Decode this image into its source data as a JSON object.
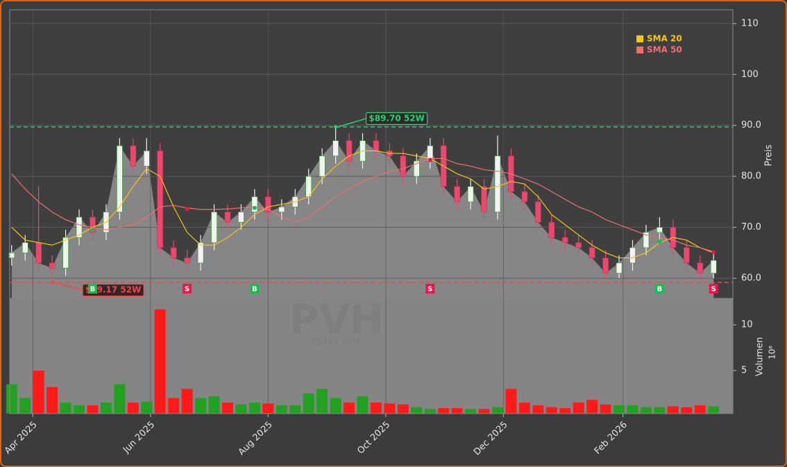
{
  "chart_data": {
    "type": "candlestick",
    "watermark": "PVH",
    "watermark_subtitle": "PVH Corp",
    "x": [
      "2025-03-21",
      "2025-03-28",
      "2025-04-04",
      "2025-04-11",
      "2025-04-18",
      "2025-04-25",
      "2025-05-02",
      "2025-05-09",
      "2025-05-16",
      "2025-05-23",
      "2025-05-30",
      "2025-06-06",
      "2025-06-13",
      "2025-06-20",
      "2025-06-27",
      "2025-07-04",
      "2025-07-11",
      "2025-07-18",
      "2025-07-25",
      "2025-08-01",
      "2025-08-08",
      "2025-08-15",
      "2025-08-22",
      "2025-08-29",
      "2025-09-05",
      "2025-09-12",
      "2025-09-19",
      "2025-09-26",
      "2025-10-03",
      "2025-10-10",
      "2025-10-17",
      "2025-10-24",
      "2025-10-31",
      "2025-11-07",
      "2025-11-14",
      "2025-11-21",
      "2025-11-28",
      "2025-12-05",
      "2025-12-12",
      "2025-12-19",
      "2025-12-26",
      "2026-01-02",
      "2026-01-09",
      "2026-01-16",
      "2026-01-23",
      "2026-01-30",
      "2026-02-06",
      "2026-02-13",
      "2026-02-20",
      "2026-02-27",
      "2026-03-06",
      "2026-03-13",
      "2026-03-20"
    ],
    "open": [
      64,
      65,
      67,
      63,
      62,
      68,
      72,
      69,
      73,
      86,
      82,
      85,
      66,
      64,
      63,
      67,
      73,
      71,
      73,
      76,
      73,
      74,
      76,
      80,
      84,
      87,
      83,
      87,
      85,
      84,
      80,
      83,
      86,
      78,
      75,
      78,
      73,
      84,
      77,
      75,
      71,
      68,
      67,
      66,
      64,
      61,
      63,
      66,
      69,
      70,
      66,
      63,
      61
    ],
    "high": [
      66.5,
      68.5,
      78,
      64.5,
      69.5,
      73.5,
      73.5,
      74.5,
      87.5,
      87.5,
      87.5,
      86.5,
      67.5,
      65.5,
      68.5,
      74.5,
      74.5,
      74.5,
      77.5,
      77.5,
      75.5,
      77.5,
      81.5,
      85.5,
      89.7,
      88.5,
      88.5,
      88.5,
      86.5,
      85.5,
      84.5,
      87.5,
      87.5,
      79.5,
      79.5,
      79.5,
      88,
      85.5,
      78.5,
      76.5,
      72.5,
      69.5,
      68.5,
      67.5,
      65.5,
      64.5,
      67.5,
      70.5,
      72,
      71.5,
      67.5,
      64.5,
      65
    ],
    "low": [
      62.5,
      63.5,
      61.5,
      59.17,
      60.5,
      66.5,
      67.5,
      67.5,
      71.5,
      80.5,
      80.5,
      64.5,
      62.5,
      61.5,
      61.5,
      65.5,
      69.5,
      69.5,
      71.5,
      71.5,
      71.5,
      72.5,
      74.5,
      78.5,
      82.5,
      81.5,
      81.5,
      83.5,
      82.5,
      78.5,
      78.5,
      81.5,
      76.5,
      73.5,
      73.5,
      71.5,
      71.5,
      75.5,
      73.5,
      69.5,
      66.5,
      65.5,
      64.5,
      62.5,
      60,
      60,
      61.5,
      64.5,
      67.5,
      64.5,
      61.5,
      59.8,
      60
    ],
    "close": [
      65,
      67,
      63,
      62,
      68,
      72,
      69,
      73,
      86,
      82,
      85,
      66,
      64,
      63,
      67,
      73,
      71,
      73,
      76,
      73,
      74,
      76,
      80,
      84,
      87,
      83,
      87,
      85,
      84,
      80,
      83,
      86,
      78,
      75,
      78,
      73,
      84,
      77,
      75,
      71,
      68,
      67,
      66,
      64,
      61,
      63,
      66,
      69,
      70,
      66,
      63,
      61,
      63.5
    ],
    "up_color": "#f2f2f2",
    "down_color": "#e84a6f",
    "area_color": "#8a8a8a",
    "series": [
      {
        "name": "SMA 20",
        "color": "#f5c518",
        "values": [
          70,
          67.5,
          67,
          66.5,
          67.5,
          68.5,
          70,
          71,
          74,
          78,
          81.5,
          80,
          74,
          69,
          66.5,
          66.5,
          68,
          70,
          72.5,
          74,
          74.5,
          75,
          76,
          79.5,
          82,
          84,
          85,
          85,
          84.5,
          84.5,
          84,
          83.5,
          82,
          80.5,
          79.5,
          77.5,
          78,
          79,
          78.5,
          76,
          72.5,
          70.5,
          68.5,
          66.5,
          65,
          64,
          64,
          65,
          67,
          68,
          67.5,
          66,
          65
        ]
      },
      {
        "name": "SMA 50",
        "color": "#f07070",
        "values": [
          80.5,
          77.5,
          75,
          73,
          71.5,
          70.5,
          70,
          69.5,
          70,
          70.5,
          72,
          74,
          74.3,
          73.8,
          73.5,
          73.5,
          73.6,
          73.8,
          74,
          73.5,
          72,
          71,
          72,
          74,
          76,
          77.5,
          79,
          80,
          81,
          81.5,
          82.5,
          83.5,
          83.5,
          82.5,
          82,
          81.3,
          81,
          80.5,
          79.5,
          78.5,
          77,
          75.5,
          74,
          73,
          71.5,
          70.5,
          69.5,
          68.5,
          68,
          67.5,
          66.5,
          66,
          65.2
        ]
      }
    ],
    "volume": {
      "values": [
        3.5,
        2,
        5,
        3.2,
        1.5,
        1.2,
        1.2,
        1.5,
        3.5,
        1.5,
        1.6,
        11.7,
        2,
        3,
        2,
        2.2,
        1.5,
        1.3,
        1.5,
        1.4,
        1.2,
        1.2,
        2.5,
        3,
        2,
        1.5,
        2.2,
        1.5,
        1.4,
        1.3,
        1,
        0.8,
        0.9,
        0.9,
        0.8,
        0.8,
        1,
        3,
        1.5,
        1.2,
        1,
        0.9,
        1.5,
        1.8,
        1.3,
        1.2,
        1.2,
        1,
        1,
        1.1,
        1,
        1.2,
        1.1
      ],
      "up_color": "#22a022",
      "down_color": "#ff1a1a",
      "ylabel": "Volumen",
      "unit_label": "10⁶",
      "ylim": [
        0.3,
        12.9
      ],
      "yticks": [
        5,
        10
      ]
    },
    "ylabel": "Preis",
    "ylim": [
      56.05,
      112.7
    ],
    "yticks": [
      {
        "value": 60,
        "label": "60.0"
      },
      {
        "value": 70,
        "label": "70.0"
      },
      {
        "value": 80,
        "label": "80.0"
      },
      {
        "value": 90,
        "label": "90.0"
      },
      {
        "value": 100,
        "label": "100"
      },
      {
        "value": 110,
        "label": "110"
      }
    ],
    "xlim": [
      "2025-03-20",
      "2026-03-30"
    ],
    "xticks": [
      {
        "value": "2025-04-01",
        "label": "Apr 2025"
      },
      {
        "value": "2025-06-01",
        "label": "Jun 2025"
      },
      {
        "value": "2025-08-01",
        "label": "Aug 2025"
      },
      {
        "value": "2025-10-01",
        "label": "Oct 2025"
      },
      {
        "value": "2025-12-01",
        "label": "Dec 2025"
      },
      {
        "value": "2026-02-01",
        "label": "Feb 2026"
      }
    ],
    "levels": [
      {
        "label": "$89.70 52W",
        "value": 89.7,
        "x": "2025-09-05",
        "color": "#2ecc71"
      },
      {
        "label": "$59.17 52W",
        "value": 59.17,
        "x": "2025-04-11",
        "color": "#ff4040"
      }
    ],
    "signals": [
      {
        "label": "B",
        "x": "2025-05-02",
        "value": 69.5,
        "color": "#1db954"
      },
      {
        "label": "S",
        "x": "2025-06-20",
        "value": 73.6,
        "color": "#e8174a"
      },
      {
        "label": "B",
        "x": "2025-07-25",
        "value": 73.8,
        "color": "#1db954"
      },
      {
        "label": "S",
        "x": "2025-10-24",
        "value": 83.2,
        "color": "#e8174a"
      },
      {
        "label": "B",
        "x": "2026-02-20",
        "value": 67.2,
        "color": "#1db954"
      },
      {
        "label": "S",
        "x": "2026-03-20",
        "value": 65.1,
        "color": "#e8174a"
      }
    ],
    "grid": true,
    "legend": "upper right"
  }
}
